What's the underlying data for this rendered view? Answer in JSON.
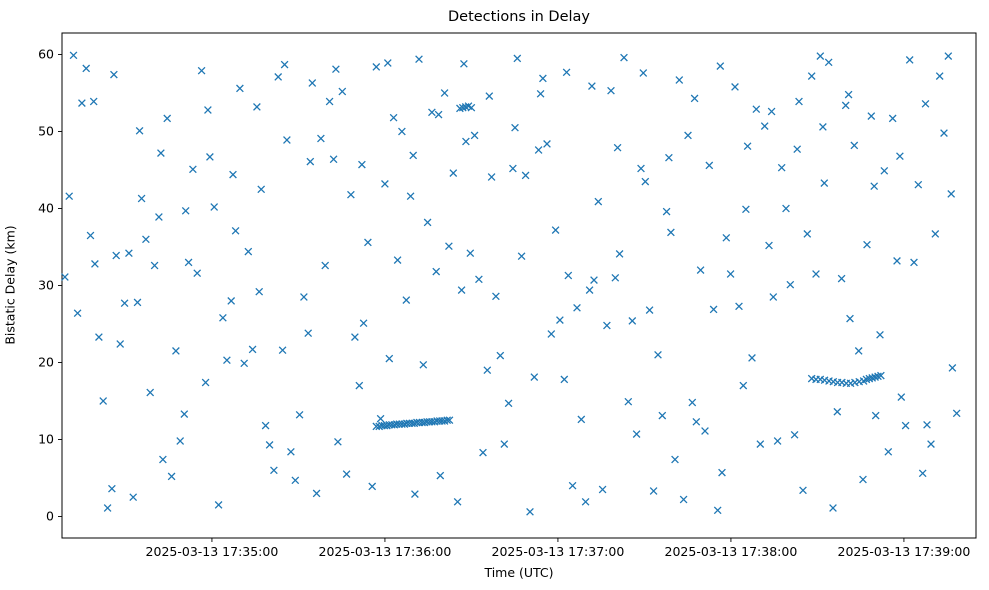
{
  "chart_data": {
    "type": "scatter",
    "title": "Detections in Delay",
    "xlabel": "Time (UTC)",
    "ylabel": "Bistatic Delay (km)",
    "marker": "x",
    "marker_color": "#1f77b4",
    "background_color": "#ffffff",
    "axis_color": "#000000",
    "x_unit": "seconds after 2025-03-13 17:34:00 UTC",
    "xlim": [
      8,
      325
    ],
    "ylim": [
      -2.8,
      62.8
    ],
    "grid": false,
    "legend": "none",
    "x_ticks": {
      "values": [
        60,
        120,
        180,
        240,
        300
      ],
      "labels": [
        "2025-03-13 17:35:00",
        "2025-03-13 17:36:00",
        "2025-03-13 17:37:00",
        "2025-03-13 17:38:00",
        "2025-03-13 17:39:00"
      ]
    },
    "y_ticks": {
      "values": [
        0,
        10,
        20,
        30,
        40,
        50,
        60
      ],
      "labels": [
        "0",
        "10",
        "20",
        "30",
        "40",
        "50",
        "60"
      ]
    },
    "points": [
      [
        9,
        31.1
      ],
      [
        10.5,
        41.6
      ],
      [
        12,
        59.9
      ],
      [
        13.4,
        26.4
      ],
      [
        14.9,
        53.7
      ],
      [
        16.4,
        58.2
      ],
      [
        17.9,
        36.5
      ],
      [
        19.4,
        32.8
      ],
      [
        20.8,
        23.3
      ],
      [
        22.3,
        15.0
      ],
      [
        23.8,
        1.1
      ],
      [
        25.3,
        3.6
      ],
      [
        26.8,
        33.9
      ],
      [
        28.2,
        22.4
      ],
      [
        29.7,
        27.7
      ],
      [
        31.2,
        34.2
      ],
      [
        32.7,
        2.5
      ],
      [
        34.2,
        27.8
      ],
      [
        35.6,
        41.3
      ],
      [
        37.1,
        36.0
      ],
      [
        38.6,
        16.1
      ],
      [
        40.1,
        32.6
      ],
      [
        41.6,
        38.9
      ],
      [
        43,
        7.4
      ],
      [
        44.5,
        51.7
      ],
      [
        46,
        5.2
      ],
      [
        47.5,
        21.5
      ],
      [
        49,
        9.8
      ],
      [
        50.4,
        13.3
      ],
      [
        51.9,
        33.0
      ],
      [
        53.4,
        45.1
      ],
      [
        54.9,
        31.6
      ],
      [
        56.4,
        57.9
      ],
      [
        57.8,
        17.4
      ],
      [
        59.3,
        46.7
      ],
      [
        60.8,
        40.2
      ],
      [
        62.3,
        1.5
      ],
      [
        63.8,
        25.8
      ],
      [
        65.2,
        20.3
      ],
      [
        66.7,
        28.0
      ],
      [
        68.2,
        37.1
      ],
      [
        69.7,
        55.6
      ],
      [
        71.2,
        19.9
      ],
      [
        72.6,
        34.4
      ],
      [
        74.1,
        21.7
      ],
      [
        75.6,
        53.2
      ],
      [
        77.1,
        42.5
      ],
      [
        78.6,
        11.8
      ],
      [
        80,
        9.3
      ],
      [
        81.5,
        6.0
      ],
      [
        83,
        57.1
      ],
      [
        84.5,
        21.6
      ],
      [
        86,
        48.9
      ],
      [
        87.4,
        8.4
      ],
      [
        88.9,
        4.7
      ],
      [
        90.4,
        13.2
      ],
      [
        91.9,
        28.5
      ],
      [
        93.4,
        23.8
      ],
      [
        94.8,
        56.3
      ],
      [
        96.3,
        3.0
      ],
      [
        97.8,
        49.1
      ],
      [
        99.3,
        32.6
      ],
      [
        100.8,
        53.9
      ],
      [
        102.2,
        46.4
      ],
      [
        103.7,
        9.7
      ],
      [
        105.2,
        55.2
      ],
      [
        106.7,
        5.5
      ],
      [
        108.2,
        41.8
      ],
      [
        109.6,
        23.3
      ],
      [
        111.1,
        17.0
      ],
      [
        112.6,
        25.1
      ],
      [
        114.1,
        35.6
      ],
      [
        115.6,
        3.9
      ],
      [
        117,
        58.4
      ],
      [
        118.5,
        12.7
      ],
      [
        120,
        43.2
      ],
      [
        121.5,
        20.5
      ],
      [
        123,
        51.8
      ],
      [
        124.4,
        33.3
      ],
      [
        125.9,
        50.0
      ],
      [
        127.4,
        28.1
      ],
      [
        128.9,
        41.6
      ],
      [
        130.4,
        2.9
      ],
      [
        131.8,
        59.4
      ],
      [
        133.3,
        19.7
      ],
      [
        134.8,
        38.2
      ],
      [
        136.3,
        52.5
      ],
      [
        137.8,
        31.8
      ],
      [
        139.2,
        5.3
      ],
      [
        140.7,
        55.0
      ],
      [
        142.2,
        35.1
      ],
      [
        143.7,
        44.6
      ],
      [
        145.2,
        1.9
      ],
      [
        146.6,
        29.4
      ],
      [
        148.1,
        48.7
      ],
      [
        149.6,
        34.2
      ],
      [
        151.1,
        49.5
      ],
      [
        152.6,
        30.8
      ],
      [
        154,
        8.3
      ],
      [
        155.5,
        19.0
      ],
      [
        157,
        44.1
      ],
      [
        158.5,
        28.6
      ],
      [
        160,
        20.9
      ],
      [
        161.4,
        9.4
      ],
      [
        162.9,
        14.7
      ],
      [
        164.4,
        45.2
      ],
      [
        165.9,
        59.5
      ],
      [
        167.4,
        33.8
      ],
      [
        168.8,
        44.3
      ],
      [
        170.3,
        0.6
      ],
      [
        171.8,
        18.1
      ],
      [
        173.3,
        47.6
      ],
      [
        174.8,
        56.9
      ],
      [
        176.2,
        48.4
      ],
      [
        177.7,
        23.7
      ],
      [
        179.2,
        37.2
      ],
      [
        180.7,
        25.5
      ],
      [
        182.2,
        17.8
      ],
      [
        183.6,
        31.3
      ],
      [
        185.1,
        4.0
      ],
      [
        186.6,
        27.1
      ],
      [
        188.1,
        12.6
      ],
      [
        189.6,
        1.9
      ],
      [
        191,
        29.4
      ],
      [
        192.5,
        30.7
      ],
      [
        194,
        40.9
      ],
      [
        195.5,
        3.5
      ],
      [
        197,
        24.8
      ],
      [
        198.4,
        55.3
      ],
      [
        199.9,
        31.0
      ],
      [
        201.4,
        34.1
      ],
      [
        202.9,
        59.6
      ],
      [
        204.4,
        14.9
      ],
      [
        205.8,
        25.4
      ],
      [
        207.3,
        10.7
      ],
      [
        208.8,
        45.2
      ],
      [
        210.3,
        43.5
      ],
      [
        211.8,
        26.8
      ],
      [
        213.2,
        3.3
      ],
      [
        214.7,
        21.0
      ],
      [
        216.2,
        13.1
      ],
      [
        217.7,
        39.6
      ],
      [
        219.2,
        36.9
      ],
      [
        220.6,
        7.4
      ],
      [
        222.1,
        56.7
      ],
      [
        223.6,
        2.2
      ],
      [
        225.1,
        49.5
      ],
      [
        226.6,
        14.8
      ],
      [
        228,
        12.3
      ],
      [
        229.5,
        32.0
      ],
      [
        231,
        11.1
      ],
      [
        232.5,
        45.6
      ],
      [
        234,
        26.9
      ],
      [
        235.4,
        0.8
      ],
      [
        236.9,
        5.7
      ],
      [
        238.4,
        36.2
      ],
      [
        239.9,
        31.5
      ],
      [
        241.4,
        55.8
      ],
      [
        242.8,
        27.3
      ],
      [
        244.3,
        17.0
      ],
      [
        245.8,
        48.1
      ],
      [
        247.3,
        20.6
      ],
      [
        248.8,
        52.9
      ],
      [
        250.2,
        9.4
      ],
      [
        251.7,
        50.7
      ],
      [
        253.2,
        35.2
      ],
      [
        254.7,
        28.5
      ],
      [
        256.2,
        9.8
      ],
      [
        257.6,
        45.3
      ],
      [
        259.1,
        40.0
      ],
      [
        260.6,
        30.1
      ],
      [
        262.1,
        10.6
      ],
      [
        263.6,
        53.9
      ],
      [
        265,
        3.4
      ],
      [
        266.5,
        36.7
      ],
      [
        268,
        57.2
      ],
      [
        269.5,
        31.5
      ],
      [
        271,
        59.8
      ],
      [
        272.4,
        43.3
      ],
      [
        273.9,
        59.0
      ],
      [
        275.4,
        1.1
      ],
      [
        276.9,
        13.6
      ],
      [
        278.4,
        30.9
      ],
      [
        279.8,
        53.4
      ],
      [
        281.3,
        25.7
      ],
      [
        282.8,
        48.2
      ],
      [
        284.3,
        21.5
      ],
      [
        285.8,
        4.8
      ],
      [
        287.2,
        35.3
      ],
      [
        288.7,
        52.0
      ],
      [
        290.2,
        13.1
      ],
      [
        291.7,
        23.6
      ],
      [
        293.2,
        44.9
      ],
      [
        294.6,
        8.4
      ],
      [
        296.1,
        51.7
      ],
      [
        297.6,
        33.2
      ],
      [
        299.1,
        15.5
      ],
      [
        300.6,
        11.8
      ],
      [
        302,
        59.3
      ],
      [
        303.5,
        33.0
      ],
      [
        305,
        43.1
      ],
      [
        306.5,
        5.6
      ],
      [
        308,
        11.9
      ],
      [
        309.4,
        9.4
      ],
      [
        310.9,
        36.7
      ],
      [
        312.4,
        57.2
      ],
      [
        313.9,
        49.8
      ],
      [
        315.4,
        59.8
      ],
      [
        316.8,
        19.3
      ],
      [
        318.3,
        13.4
      ],
      [
        19.0,
        53.9
      ],
      [
        26.0,
        57.4
      ],
      [
        34.9,
        50.1
      ],
      [
        42.3,
        47.2
      ],
      [
        50.9,
        39.7
      ],
      [
        58.6,
        52.8
      ],
      [
        67.3,
        44.4
      ],
      [
        76.4,
        29.2
      ],
      [
        85.2,
        58.7
      ],
      [
        94.1,
        46.1
      ],
      [
        103.0,
        58.1
      ],
      [
        112.0,
        45.7
      ],
      [
        121.0,
        58.9
      ],
      [
        129.8,
        46.9
      ],
      [
        138.6,
        52.2
      ],
      [
        147.4,
        58.8
      ],
      [
        156.2,
        54.6
      ],
      [
        165.1,
        50.5
      ],
      [
        174.0,
        54.9
      ],
      [
        183.0,
        57.7
      ],
      [
        191.8,
        55.9
      ],
      [
        200.7,
        47.9
      ],
      [
        209.6,
        57.6
      ],
      [
        218.5,
        46.6
      ],
      [
        227.4,
        54.3
      ],
      [
        236.3,
        58.5
      ],
      [
        245.2,
        39.9
      ],
      [
        254.1,
        52.6
      ],
      [
        263.0,
        47.7
      ],
      [
        271.9,
        50.6
      ],
      [
        280.8,
        54.8
      ],
      [
        289.7,
        42.9
      ],
      [
        298.6,
        46.8
      ],
      [
        307.5,
        53.6
      ],
      [
        316.4,
        41.9
      ],
      [
        117,
        11.7
      ],
      [
        118,
        11.7
      ],
      [
        119,
        11.8
      ],
      [
        119.8,
        11.8
      ],
      [
        120.7,
        11.8
      ],
      [
        121.5,
        11.9
      ],
      [
        122.4,
        11.9
      ],
      [
        123.3,
        11.9
      ],
      [
        124.1,
        12.0
      ],
      [
        125,
        12.0
      ],
      [
        125.9,
        12.0
      ],
      [
        126.8,
        12.0
      ],
      [
        127.6,
        12.1
      ],
      [
        128.5,
        12.1
      ],
      [
        129.4,
        12.1
      ],
      [
        130.2,
        12.1
      ],
      [
        131.1,
        12.2
      ],
      [
        132,
        12.2
      ],
      [
        132.9,
        12.2
      ],
      [
        133.7,
        12.2
      ],
      [
        134.6,
        12.3
      ],
      [
        135.5,
        12.3
      ],
      [
        136.3,
        12.3
      ],
      [
        137.2,
        12.3
      ],
      [
        138.1,
        12.4
      ],
      [
        139,
        12.4
      ],
      [
        139.8,
        12.4
      ],
      [
        140.7,
        12.4
      ],
      [
        141.6,
        12.5
      ],
      [
        142.4,
        12.5
      ],
      [
        146,
        53.0
      ],
      [
        147,
        53.1
      ],
      [
        148,
        53.2
      ],
      [
        149,
        53.3
      ],
      [
        150,
        53.1
      ],
      [
        268,
        17.9
      ],
      [
        269.5,
        17.8
      ],
      [
        271,
        17.8
      ],
      [
        272.5,
        17.7
      ],
      [
        274,
        17.6
      ],
      [
        275.5,
        17.5
      ],
      [
        277,
        17.4
      ],
      [
        278.5,
        17.4
      ],
      [
        280,
        17.3
      ],
      [
        281.5,
        17.3
      ],
      [
        283,
        17.4
      ],
      [
        284.5,
        17.5
      ],
      [
        286,
        17.6
      ],
      [
        287,
        17.8
      ],
      [
        288,
        17.9
      ],
      [
        289,
        18.0
      ],
      [
        290,
        18.1
      ],
      [
        291,
        18.2
      ],
      [
        292,
        18.3
      ]
    ]
  }
}
